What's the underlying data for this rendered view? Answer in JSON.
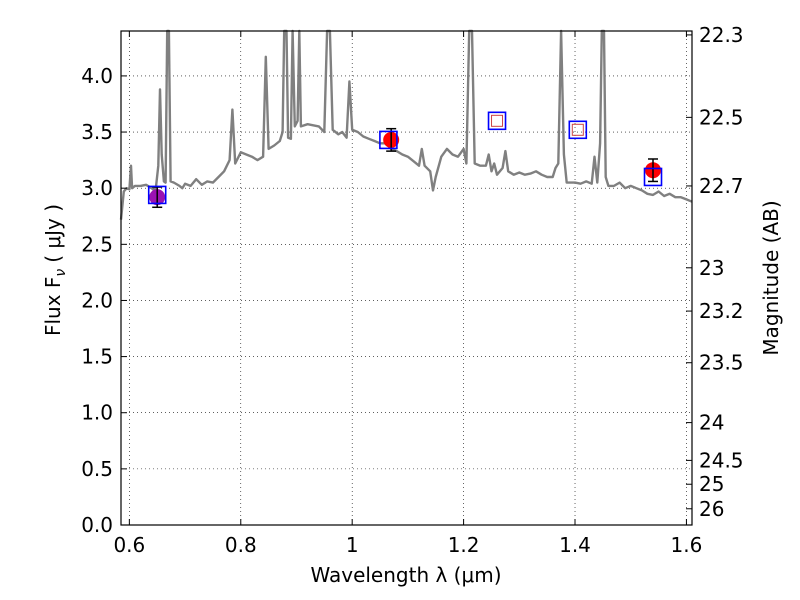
{
  "chart_data": {
    "type": "line",
    "xlabel": "Wavelength  λ (μm)",
    "ylabel": "Flux  F",
    "ylabel_sub": "ν",
    "ylabel_unit": "( μJy )",
    "y2label": "Magnitude (AB)",
    "xlim": [
      0.585,
      1.61
    ],
    "ylim": [
      0.0,
      4.4
    ],
    "grid": true,
    "grid_style": "dotted",
    "x_ticks": [
      {
        "value": 0.6,
        "label": "0.6"
      },
      {
        "value": 0.8,
        "label": "0.8"
      },
      {
        "value": 1.0,
        "label": "1"
      },
      {
        "value": 1.2,
        "label": "1.2"
      },
      {
        "value": 1.4,
        "label": "1.4"
      },
      {
        "value": 1.6,
        "label": "1.6"
      }
    ],
    "y_ticks": [
      {
        "value": 0.0,
        "label": "0.0"
      },
      {
        "value": 0.5,
        "label": "0.5"
      },
      {
        "value": 1.0,
        "label": "1.0"
      },
      {
        "value": 1.5,
        "label": "1.5"
      },
      {
        "value": 2.0,
        "label": "2.0"
      },
      {
        "value": 2.5,
        "label": "2.5"
      },
      {
        "value": 3.0,
        "label": "3.0"
      },
      {
        "value": 3.5,
        "label": "3.5"
      },
      {
        "value": 4.0,
        "label": "4.0"
      }
    ],
    "y2_ticks": [
      {
        "mag": 22.3,
        "label": "22.3"
      },
      {
        "mag": 22.5,
        "label": "22.5"
      },
      {
        "mag": 22.7,
        "label": "22.7"
      },
      {
        "mag": 23.0,
        "label": "23"
      },
      {
        "mag": 23.2,
        "label": "23.2"
      },
      {
        "mag": 23.5,
        "label": "23.5"
      },
      {
        "mag": 24.0,
        "label": "24"
      },
      {
        "mag": 24.5,
        "label": "24.5"
      },
      {
        "mag": 25.0,
        "label": "25"
      },
      {
        "mag": 26.0,
        "label": "26"
      }
    ],
    "series": [
      {
        "kind": "model_spectrum",
        "color": "#808080",
        "points": [
          [
            0.585,
            2.72
          ],
          [
            0.59,
            2.97
          ],
          [
            0.595,
            3.0
          ],
          [
            0.6,
            2.99
          ],
          [
            0.603,
            3.2
          ],
          [
            0.605,
            3.0
          ],
          [
            0.61,
            3.02
          ],
          [
            0.62,
            3.02
          ],
          [
            0.63,
            3.03
          ],
          [
            0.64,
            3.0
          ],
          [
            0.645,
            2.98
          ],
          [
            0.648,
            3.02
          ],
          [
            0.652,
            3.2
          ],
          [
            0.655,
            3.88
          ],
          [
            0.658,
            3.3
          ],
          [
            0.662,
            3.06
          ],
          [
            0.665,
            3.05
          ],
          [
            0.668,
            4.4
          ],
          [
            0.671,
            4.4
          ],
          [
            0.674,
            3.06
          ],
          [
            0.68,
            3.05
          ],
          [
            0.69,
            3.02
          ],
          [
            0.695,
            3.0
          ],
          [
            0.7,
            3.04
          ],
          [
            0.71,
            3.02
          ],
          [
            0.72,
            3.08
          ],
          [
            0.73,
            3.03
          ],
          [
            0.74,
            3.06
          ],
          [
            0.75,
            3.05
          ],
          [
            0.76,
            3.1
          ],
          [
            0.77,
            3.15
          ],
          [
            0.78,
            3.25
          ],
          [
            0.785,
            3.7
          ],
          [
            0.79,
            3.22
          ],
          [
            0.8,
            3.32
          ],
          [
            0.81,
            3.3
          ],
          [
            0.82,
            3.28
          ],
          [
            0.83,
            3.25
          ],
          [
            0.84,
            3.28
          ],
          [
            0.845,
            4.17
          ],
          [
            0.85,
            3.35
          ],
          [
            0.86,
            3.38
          ],
          [
            0.87,
            3.42
          ],
          [
            0.875,
            3.5
          ],
          [
            0.878,
            4.4
          ],
          [
            0.882,
            4.4
          ],
          [
            0.885,
            3.45
          ],
          [
            0.89,
            3.44
          ],
          [
            0.893,
            4.4
          ],
          [
            0.897,
            3.55
          ],
          [
            0.902,
            3.6
          ],
          [
            0.905,
            4.4
          ],
          [
            0.908,
            3.55
          ],
          [
            0.92,
            3.57
          ],
          [
            0.93,
            3.56
          ],
          [
            0.94,
            3.55
          ],
          [
            0.95,
            3.5
          ],
          [
            0.955,
            4.4
          ],
          [
            0.96,
            4.4
          ],
          [
            0.965,
            3.52
          ],
          [
            0.97,
            3.5
          ],
          [
            0.975,
            3.48
          ],
          [
            0.982,
            3.5
          ],
          [
            0.99,
            3.45
          ],
          [
            0.995,
            3.95
          ],
          [
            1.0,
            3.52
          ],
          [
            1.01,
            3.5
          ],
          [
            1.02,
            3.46
          ],
          [
            1.03,
            3.44
          ],
          [
            1.04,
            3.42
          ],
          [
            1.05,
            3.4
          ],
          [
            1.06,
            3.4
          ],
          [
            1.07,
            3.35
          ],
          [
            1.08,
            3.33
          ],
          [
            1.09,
            3.3
          ],
          [
            1.1,
            3.28
          ],
          [
            1.11,
            3.24
          ],
          [
            1.12,
            3.2
          ],
          [
            1.125,
            3.35
          ],
          [
            1.13,
            3.2
          ],
          [
            1.14,
            3.15
          ],
          [
            1.145,
            2.98
          ],
          [
            1.15,
            3.1
          ],
          [
            1.16,
            3.28
          ],
          [
            1.17,
            3.35
          ],
          [
            1.18,
            3.3
          ],
          [
            1.19,
            3.28
          ],
          [
            1.2,
            3.35
          ],
          [
            1.205,
            3.22
          ],
          [
            1.21,
            4.4
          ],
          [
            1.215,
            4.4
          ],
          [
            1.22,
            3.22
          ],
          [
            1.23,
            3.2
          ],
          [
            1.24,
            3.2
          ],
          [
            1.245,
            3.3
          ],
          [
            1.25,
            3.15
          ],
          [
            1.255,
            3.22
          ],
          [
            1.26,
            3.12
          ],
          [
            1.27,
            3.18
          ],
          [
            1.275,
            3.33
          ],
          [
            1.28,
            3.15
          ],
          [
            1.29,
            3.12
          ],
          [
            1.3,
            3.14
          ],
          [
            1.31,
            3.12
          ],
          [
            1.32,
            3.13
          ],
          [
            1.33,
            3.15
          ],
          [
            1.34,
            3.12
          ],
          [
            1.35,
            3.1
          ],
          [
            1.36,
            3.1
          ],
          [
            1.365,
            3.18
          ],
          [
            1.37,
            3.22
          ],
          [
            1.375,
            4.4
          ],
          [
            1.38,
            3.3
          ],
          [
            1.385,
            3.05
          ],
          [
            1.39,
            3.05
          ],
          [
            1.4,
            3.05
          ],
          [
            1.41,
            3.04
          ],
          [
            1.42,
            3.06
          ],
          [
            1.43,
            3.04
          ],
          [
            1.435,
            3.28
          ],
          [
            1.44,
            3.05
          ],
          [
            1.445,
            3.4
          ],
          [
            1.448,
            4.4
          ],
          [
            1.452,
            4.4
          ],
          [
            1.455,
            3.1
          ],
          [
            1.46,
            3.02
          ],
          [
            1.47,
            3.02
          ],
          [
            1.48,
            3.05
          ],
          [
            1.49,
            3.0
          ],
          [
            1.5,
            3.02
          ],
          [
            1.51,
            3.0
          ],
          [
            1.52,
            2.98
          ],
          [
            1.53,
            2.95
          ],
          [
            1.54,
            2.94
          ],
          [
            1.55,
            2.97
          ],
          [
            1.56,
            2.93
          ],
          [
            1.57,
            2.95
          ],
          [
            1.58,
            2.92
          ],
          [
            1.59,
            2.92
          ],
          [
            1.6,
            2.9
          ],
          [
            1.61,
            2.88
          ]
        ]
      },
      {
        "kind": "model_photometry",
        "marker": "square",
        "edge_color": "#0000ff",
        "points": [
          [
            0.65,
            2.94
          ],
          [
            1.065,
            3.43
          ],
          [
            1.26,
            3.6
          ],
          [
            1.405,
            3.52
          ],
          [
            1.54,
            3.1
          ]
        ]
      },
      {
        "kind": "observed_upper_limits",
        "marker": "open-square",
        "edge_color": "#cc4444",
        "points": [
          [
            1.26,
            3.6
          ],
          [
            1.405,
            3.52
          ]
        ]
      },
      {
        "kind": "observed_photometry",
        "marker": "circle",
        "color": "#ff0000",
        "blend_color": "#9a12b2",
        "points": [
          {
            "x": 0.65,
            "y": 2.92,
            "yerr": 0.09,
            "blend": true
          },
          {
            "x": 1.07,
            "y": 3.43,
            "yerr": 0.1,
            "blend": false
          },
          {
            "x": 1.54,
            "y": 3.16,
            "yerr": 0.1,
            "blend": false
          }
        ]
      }
    ]
  }
}
